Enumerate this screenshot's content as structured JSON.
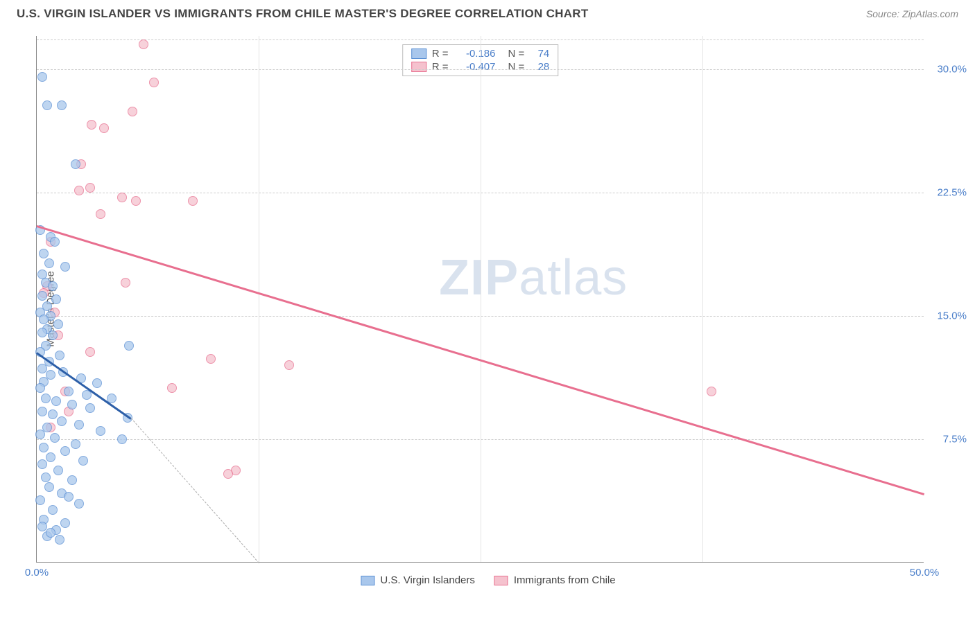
{
  "header": {
    "title": "U.S. VIRGIN ISLANDER VS IMMIGRANTS FROM CHILE MASTER'S DEGREE CORRELATION CHART",
    "source": "Source: ZipAtlas.com"
  },
  "chart": {
    "type": "scatter",
    "ylabel": "Master's Degree",
    "xlim": [
      0,
      50
    ],
    "ylim": [
      0,
      32
    ],
    "xtick_labels": [
      "0.0%",
      "50.0%"
    ],
    "xtick_positions": [
      0,
      50
    ],
    "ytick_labels": [
      "7.5%",
      "15.0%",
      "22.5%",
      "30.0%"
    ],
    "ytick_positions": [
      7.5,
      15.0,
      22.5,
      30.0
    ],
    "minor_x_positions": [
      12.5,
      25,
      37.5
    ],
    "background_color": "#ffffff",
    "grid_color": "#cccccc",
    "axis_color": "#888888",
    "series": {
      "usvi": {
        "label": "U.S. Virgin Islanders",
        "fill": "#a9c7ec",
        "stroke": "#5a8fd4",
        "r": -0.186,
        "n": 74,
        "points": [
          [
            0.3,
            29.5
          ],
          [
            0.6,
            27.8
          ],
          [
            1.4,
            27.8
          ],
          [
            2.2,
            24.2
          ],
          [
            0.2,
            20.2
          ],
          [
            0.8,
            19.8
          ],
          [
            1.0,
            19.5
          ],
          [
            0.4,
            18.8
          ],
          [
            0.7,
            18.2
          ],
          [
            1.6,
            18.0
          ],
          [
            0.3,
            17.5
          ],
          [
            0.5,
            17.0
          ],
          [
            0.9,
            16.8
          ],
          [
            0.3,
            16.2
          ],
          [
            1.1,
            16.0
          ],
          [
            0.6,
            15.6
          ],
          [
            0.2,
            15.2
          ],
          [
            0.8,
            15.0
          ],
          [
            0.4,
            14.8
          ],
          [
            1.2,
            14.5
          ],
          [
            0.6,
            14.2
          ],
          [
            0.3,
            14.0
          ],
          [
            0.9,
            13.8
          ],
          [
            5.2,
            13.2
          ],
          [
            0.5,
            13.2
          ],
          [
            0.2,
            12.8
          ],
          [
            1.3,
            12.6
          ],
          [
            0.7,
            12.2
          ],
          [
            0.3,
            11.8
          ],
          [
            1.5,
            11.6
          ],
          [
            2.5,
            11.2
          ],
          [
            0.4,
            11.0
          ],
          [
            3.4,
            10.9
          ],
          [
            0.8,
            11.4
          ],
          [
            0.2,
            10.6
          ],
          [
            1.8,
            10.4
          ],
          [
            2.8,
            10.2
          ],
          [
            4.2,
            10.0
          ],
          [
            0.5,
            10.0
          ],
          [
            1.1,
            9.8
          ],
          [
            2.0,
            9.6
          ],
          [
            3.0,
            9.4
          ],
          [
            0.3,
            9.2
          ],
          [
            0.9,
            9.0
          ],
          [
            5.1,
            8.8
          ],
          [
            1.4,
            8.6
          ],
          [
            2.4,
            8.4
          ],
          [
            0.6,
            8.2
          ],
          [
            3.6,
            8.0
          ],
          [
            0.2,
            7.8
          ],
          [
            1.0,
            7.6
          ],
          [
            4.8,
            7.5
          ],
          [
            2.2,
            7.2
          ],
          [
            0.4,
            7.0
          ],
          [
            1.6,
            6.8
          ],
          [
            0.8,
            6.4
          ],
          [
            2.6,
            6.2
          ],
          [
            0.3,
            6.0
          ],
          [
            1.2,
            5.6
          ],
          [
            0.5,
            5.2
          ],
          [
            2.0,
            5.0
          ],
          [
            0.7,
            4.6
          ],
          [
            1.4,
            4.2
          ],
          [
            0.2,
            3.8
          ],
          [
            2.4,
            3.6
          ],
          [
            0.9,
            3.2
          ],
          [
            1.8,
            4.0
          ],
          [
            0.4,
            2.6
          ],
          [
            1.1,
            2.0
          ],
          [
            1.6,
            2.4
          ],
          [
            0.6,
            1.6
          ],
          [
            1.3,
            1.4
          ],
          [
            0.8,
            1.8
          ],
          [
            0.3,
            2.2
          ]
        ],
        "trend": {
          "x1": 0,
          "y1": 12.8,
          "x2": 5.3,
          "y2": 8.8
        },
        "trend_extend": {
          "x1": 5.3,
          "y1": 8.8,
          "x2": 12.5,
          "y2": 0
        }
      },
      "chile": {
        "label": "Immigrants from Chile",
        "fill": "#f5c2ce",
        "stroke": "#e86f8f",
        "r": -0.407,
        "n": 28,
        "points": [
          [
            6.0,
            31.5
          ],
          [
            6.6,
            29.2
          ],
          [
            5.4,
            27.4
          ],
          [
            3.1,
            26.6
          ],
          [
            3.8,
            26.4
          ],
          [
            2.5,
            24.2
          ],
          [
            3.0,
            22.8
          ],
          [
            2.4,
            22.6
          ],
          [
            4.8,
            22.2
          ],
          [
            5.6,
            22.0
          ],
          [
            8.8,
            22.0
          ],
          [
            3.6,
            21.2
          ],
          [
            0.8,
            19.5
          ],
          [
            5.0,
            17.0
          ],
          [
            0.6,
            16.8
          ],
          [
            0.4,
            16.4
          ],
          [
            1.0,
            15.2
          ],
          [
            1.2,
            13.8
          ],
          [
            3.0,
            12.8
          ],
          [
            9.8,
            12.4
          ],
          [
            14.2,
            12.0
          ],
          [
            7.6,
            10.6
          ],
          [
            38.0,
            10.4
          ],
          [
            1.6,
            10.4
          ],
          [
            1.8,
            9.2
          ],
          [
            11.2,
            5.6
          ],
          [
            10.8,
            5.4
          ],
          [
            0.8,
            8.2
          ]
        ],
        "trend": {
          "x1": 0,
          "y1": 20.5,
          "x2": 50,
          "y2": 4.2
        }
      }
    },
    "r_legend": {
      "rows": [
        {
          "swatch_fill": "#a9c7ec",
          "swatch_stroke": "#5a8fd4",
          "r_label": "R =",
          "r": "-0.186",
          "n_label": "N =",
          "n": "74"
        },
        {
          "swatch_fill": "#f5c2ce",
          "swatch_stroke": "#e86f8f",
          "r_label": "R =",
          "r": "-0.407",
          "n_label": "N =",
          "n": "28"
        }
      ]
    },
    "watermark": {
      "bold": "ZIP",
      "rest": "atlas"
    }
  },
  "bottom_legend": [
    {
      "fill": "#a9c7ec",
      "stroke": "#5a8fd4",
      "label": "U.S. Virgin Islanders"
    },
    {
      "fill": "#f5c2ce",
      "stroke": "#e86f8f",
      "label": "Immigrants from Chile"
    }
  ]
}
